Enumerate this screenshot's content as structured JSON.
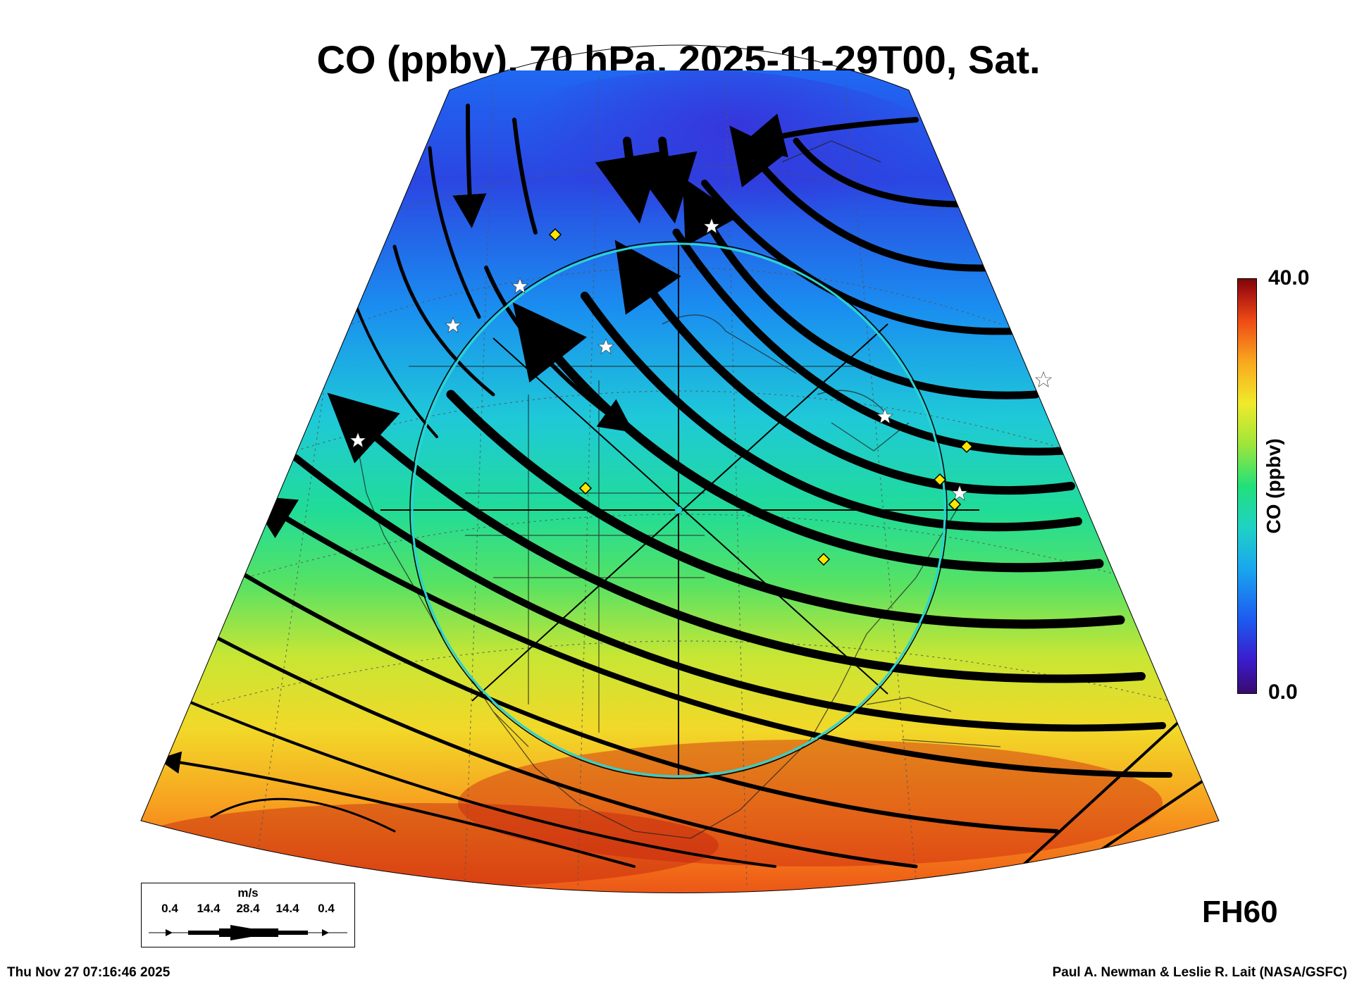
{
  "title": "CO (ppbv), 70 hPa, 2025-11-29T00, Sat.",
  "colorbar": {
    "max_label": "40.0",
    "min_label": "0.0",
    "label": "CO (ppbv)",
    "range": [
      0,
      40
    ]
  },
  "forecast_hour": "FH60",
  "wind_legend": {
    "unit": "m/s",
    "ticks": [
      "0.4",
      "14.4",
      "28.4",
      "14.4",
      "0.4"
    ]
  },
  "footer": {
    "timestamp": "Thu Nov 27 07:16:46 2025",
    "credit": "Paul A. Newman & Leslie R. Lait (NASA/GSFC)"
  },
  "colors": {
    "low": "#2e3fe6",
    "mid": "#22e07a",
    "high": "#e8321a",
    "range_ring": "#2ad4d4",
    "station_star": "#ffffff",
    "station_diamond": "#ffe600"
  }
}
